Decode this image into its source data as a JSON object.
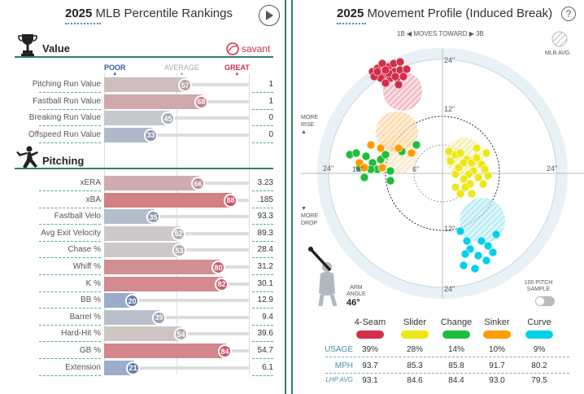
{
  "left": {
    "title_year": "2025",
    "title_rest": "MLB Percentile Rankings",
    "value_section": "Value",
    "pitching_section": "Pitching",
    "brand": "savant",
    "scale": {
      "poor": "POOR",
      "average": "AVERAGE",
      "great": "GREAT"
    },
    "value_rows": [
      {
        "label": "Pitching Run Value",
        "pct": 57,
        "value": "1"
      },
      {
        "label": "Fastball Run Value",
        "pct": 68,
        "value": "1"
      },
      {
        "label": "Breaking Run Value",
        "pct": 45,
        "value": "0"
      },
      {
        "label": "Offspeed Run Value",
        "pct": 33,
        "value": "0"
      }
    ],
    "pitching_rows": [
      {
        "label": "xERA",
        "pct": 66,
        "value": "3.23"
      },
      {
        "label": "xBA",
        "pct": 88,
        "value": ".185"
      },
      {
        "label": "Fastball Velo",
        "pct": 35,
        "value": "93.3"
      },
      {
        "label": "Avg Exit Velocity",
        "pct": 52,
        "value": "89.3"
      },
      {
        "label": "Chase %",
        "pct": 53,
        "value": "28.4"
      },
      {
        "label": "Whiff %",
        "pct": 80,
        "value": "31.2"
      },
      {
        "label": "K %",
        "pct": 82,
        "value": "30.1"
      },
      {
        "label": "BB %",
        "pct": 20,
        "value": "12.9"
      },
      {
        "label": "Barrel %",
        "pct": 39,
        "value": "9.4"
      },
      {
        "label": "Hard-Hit %",
        "pct": 54,
        "value": "39.6"
      },
      {
        "label": "GB %",
        "pct": 84,
        "value": "54.7"
      },
      {
        "label": "Extension",
        "pct": 21,
        "value": "6.1"
      }
    ]
  },
  "right": {
    "title_year": "2025",
    "title_rest": "Movement Profile (Induced Break)",
    "help": "?",
    "top_axis": {
      "left": "1B",
      "mid": "MOVES TOWARD",
      "right": "3B"
    },
    "mlb_avg": "MLB AVG.",
    "more_rise": "MORE\nRISE",
    "more_rise_l1": "MORE",
    "more_rise_l2": "RISE",
    "more_drop_l1": "MORE",
    "more_drop_l2": "DROP",
    "arm_angle_l1": "ARM",
    "arm_angle_l2": "ANGLE",
    "arm_angle_value": "46°",
    "sample_l1": "100 PITCH",
    "sample_l2": "SAMPLE",
    "ring_labels": {
      "r24": "24\"",
      "r12": "12\"",
      "r6": "6\"",
      "r18": "18\""
    },
    "table": {
      "row_labels": {
        "usage": "USAGE",
        "mph": "MPH",
        "lhp": "LHP AVG"
      },
      "pitches": [
        {
          "name": "4-Seam",
          "color": "#d22d49",
          "usage": "39%",
          "mph": "93.7",
          "lhp": "93.1"
        },
        {
          "name": "Slider",
          "color": "#eee716",
          "usage": "28%",
          "mph": "85.3",
          "lhp": "84.6"
        },
        {
          "name": "Change",
          "color": "#1dbe3a",
          "usage": "14%",
          "mph": "85.8",
          "lhp": "84.4"
        },
        {
          "name": "Sinker",
          "color": "#fe9d00",
          "usage": "10%",
          "mph": "91.7",
          "lhp": "93.0"
        },
        {
          "name": "Curve",
          "color": "#00d1ed",
          "usage": "9%",
          "mph": "80.2",
          "lhp": "79.5"
        }
      ]
    }
  },
  "colors": {
    "teal": "#2f7f6f",
    "poor": "#325aa1",
    "great": "#d22d49",
    "avg": "#a9a9a9"
  }
}
